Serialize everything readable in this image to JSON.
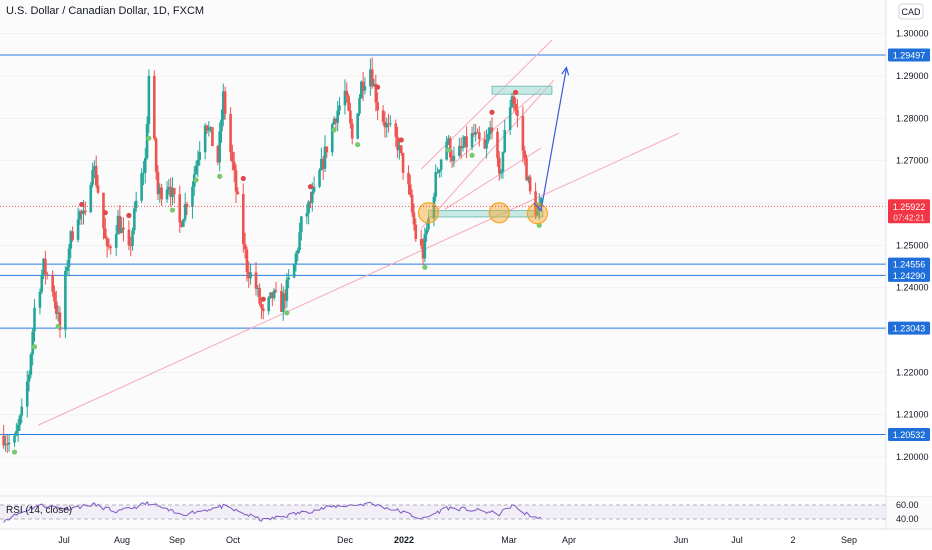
{
  "header": {
    "title": "U.S. Dollar / Canadian Dollar, 1D, FXCM",
    "currency": "CAD"
  },
  "colors": {
    "up": "#26a69a",
    "down": "#ef5350",
    "hline": "#2a7de1",
    "trend": "#f7a8b8",
    "zone": "#9ed8d0",
    "circle": "#f5a623",
    "arrow": "#3b5bdb",
    "rsi": "#7e57c2",
    "price_tag": "#f23645",
    "level_tag": "#1e6fd9"
  },
  "chart_data": [
    {
      "type": "candlestick",
      "title": "U.S. Dollar / Canadian Dollar, 1D, FXCM",
      "ylim": [
        1.195,
        1.305
      ],
      "y_ticks": [
        "1.30000",
        "1.29000",
        "1.28000",
        "1.27000",
        "1.26000",
        "1.25000",
        "1.24000",
        "1.23000",
        "1.22000",
        "1.21000",
        "1.20000"
      ],
      "x_ticks": [
        "Jul",
        "Aug",
        "Sep",
        "Oct",
        "Dec",
        "2022",
        "Mar",
        "Apr",
        "Jun",
        "Jul",
        "2",
        "Sep"
      ],
      "price_anchors": [
        [
          "2021-06-01",
          1.205
        ],
        [
          "2021-06-06",
          1.202
        ],
        [
          "2021-06-11",
          1.21
        ],
        [
          "2021-06-15",
          1.22
        ],
        [
          "2021-06-18",
          1.235
        ],
        [
          "2021-06-23",
          1.245
        ],
        [
          "2021-06-28",
          1.24
        ],
        [
          "2021-07-02",
          1.23
        ],
        [
          "2021-07-07",
          1.25
        ],
        [
          "2021-07-12",
          1.258
        ],
        [
          "2021-07-16",
          1.256
        ],
        [
          "2021-07-20",
          1.27
        ],
        [
          "2021-07-23",
          1.263
        ],
        [
          "2021-07-28",
          1.248
        ],
        [
          "2021-08-03",
          1.256
        ],
        [
          "2021-08-09",
          1.248
        ],
        [
          "2021-08-13",
          1.26
        ],
        [
          "2021-08-18",
          1.27
        ],
        [
          "2021-08-20",
          1.29
        ],
        [
          "2021-08-25",
          1.262
        ],
        [
          "2021-08-31",
          1.265
        ],
        [
          "2021-09-06",
          1.255
        ],
        [
          "2021-09-13",
          1.265
        ],
        [
          "2021-09-20",
          1.28
        ],
        [
          "2021-09-27",
          1.27
        ],
        [
          "2021-09-30",
          1.285
        ],
        [
          "2021-10-04",
          1.272
        ],
        [
          "2021-10-08",
          1.26
        ],
        [
          "2021-10-13",
          1.245
        ],
        [
          "2021-10-18",
          1.24
        ],
        [
          "2021-10-22",
          1.233
        ],
        [
          "2021-10-27",
          1.238
        ],
        [
          "2021-11-01",
          1.236
        ],
        [
          "2021-11-08",
          1.245
        ],
        [
          "2021-11-12",
          1.255
        ],
        [
          "2021-11-19",
          1.262
        ],
        [
          "2021-11-24",
          1.27
        ],
        [
          "2021-11-30",
          1.28
        ],
        [
          "2021-12-06",
          1.286
        ],
        [
          "2021-12-10",
          1.275
        ],
        [
          "2021-12-15",
          1.288
        ],
        [
          "2021-12-20",
          1.292
        ],
        [
          "2021-12-24",
          1.283
        ],
        [
          "2021-12-29",
          1.278
        ],
        [
          "2022-01-04",
          1.274
        ],
        [
          "2022-01-10",
          1.263
        ],
        [
          "2022-01-14",
          1.252
        ],
        [
          "2022-01-18",
          1.248
        ],
        [
          "2022-01-21",
          1.256
        ],
        [
          "2022-01-26",
          1.268
        ],
        [
          "2022-01-31",
          1.275
        ],
        [
          "2022-02-04",
          1.27
        ],
        [
          "2022-02-09",
          1.273
        ],
        [
          "2022-02-15",
          1.276
        ],
        [
          "2022-02-21",
          1.272
        ],
        [
          "2022-02-25",
          1.279
        ],
        [
          "2022-03-01",
          1.265
        ],
        [
          "2022-03-04",
          1.276
        ],
        [
          "2022-03-08",
          1.286
        ],
        [
          "2022-03-11",
          1.28
        ],
        [
          "2022-03-15",
          1.27
        ],
        [
          "2022-03-18",
          1.262
        ],
        [
          "2022-03-22",
          1.2575
        ],
        [
          "2022-03-24",
          1.2592
        ]
      ],
      "last_price": "1.25922",
      "countdown": "07:42:21",
      "horizontal_levels": [
        {
          "value": 1.29497,
          "label": "1.29497"
        },
        {
          "value": 1.24556,
          "label": "1.24556"
        },
        {
          "value": 1.2429,
          "label": "1.24290"
        },
        {
          "value": 1.23043,
          "label": "1.23043"
        },
        {
          "value": 1.20532,
          "label": "1.20532"
        }
      ],
      "trendlines": [
        {
          "from": [
            "2021-06-20",
            1.2075
          ],
          "to": [
            "2022-06-08",
            1.2765
          ]
        },
        {
          "from": [
            "2022-01-17",
            1.254
          ],
          "to": [
            "2022-03-31",
            1.289
          ]
        },
        {
          "from": [
            "2022-01-17",
            1.268
          ],
          "to": [
            "2022-03-30",
            1.2985
          ]
        },
        {
          "from": [
            "2022-01-30",
            1.2585
          ],
          "to": [
            "2022-03-24",
            1.273
          ]
        },
        {
          "from": [
            "2022-02-03",
            1.269
          ],
          "to": [
            "2022-03-24",
            1.287
          ]
        }
      ],
      "zones": [
        {
          "from": "2022-01-21",
          "to": "2022-03-25",
          "low": 1.2567,
          "high": 1.2582
        },
        {
          "from": "2022-02-25",
          "to": "2022-03-30",
          "low": 1.2857,
          "high": 1.2876
        }
      ],
      "highlight_circles": [
        {
          "date": "2022-01-21",
          "value": 1.2577
        },
        {
          "date": "2022-03-01",
          "value": 1.2577
        },
        {
          "date": "2022-03-22",
          "value": 1.2575
        }
      ],
      "projection": [
        [
          "2022-03-20",
          1.26
        ],
        [
          "2022-03-24",
          1.2582
        ],
        [
          "2022-04-07",
          1.292
        ]
      ]
    },
    {
      "type": "line",
      "title": "RSI (14, close)",
      "ylim": [
        30,
        70
      ],
      "y_ticks": [
        "60.00",
        "40.00"
      ],
      "rsi_anchors": [
        [
          "2021-06-01",
          38
        ],
        [
          "2021-06-20",
          60
        ],
        [
          "2021-07-07",
          55
        ],
        [
          "2021-07-20",
          61
        ],
        [
          "2021-08-03",
          50
        ],
        [
          "2021-08-20",
          63
        ],
        [
          "2021-09-06",
          46
        ],
        [
          "2021-09-30",
          58
        ],
        [
          "2021-10-22",
          38
        ],
        [
          "2021-11-08",
          47
        ],
        [
          "2021-11-30",
          58
        ],
        [
          "2021-12-20",
          62
        ],
        [
          "2022-01-04",
          52
        ],
        [
          "2022-01-18",
          40
        ],
        [
          "2022-01-31",
          56
        ],
        [
          "2022-02-15",
          53
        ],
        [
          "2022-03-01",
          47
        ],
        [
          "2022-03-08",
          60
        ],
        [
          "2022-03-15",
          48
        ],
        [
          "2022-03-24",
          40
        ]
      ]
    }
  ]
}
